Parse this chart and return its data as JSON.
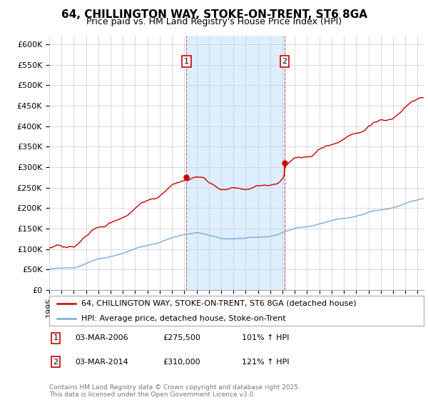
{
  "title": "64, CHILLINGTON WAY, STOKE-ON-TRENT, ST6 8GA",
  "subtitle": "Price paid vs. HM Land Registry's House Price Index (HPI)",
  "ylim": [
    0,
    620000
  ],
  "xlim_start": 1995.0,
  "xlim_end": 2025.5,
  "legend_line1": "64, CHILLINGTON WAY, STOKE-ON-TRENT, ST6 8GA (detached house)",
  "legend_line2": "HPI: Average price, detached house, Stoke-on-Trent",
  "line1_color": "#cc0000",
  "line2_color": "#7aaadd",
  "purchase1_date": 2006.17,
  "purchase1_price": 275500,
  "purchase2_date": 2014.17,
  "purchase2_price": 310000,
  "footnote": "Contains HM Land Registry data © Crown copyright and database right 2025.\nThis data is licensed under the Open Government Licence v3.0.",
  "background_color": "#ffffff",
  "plot_bg_color": "#ffffff",
  "shaded_region_color": "#ddeeff",
  "grid_color": "#cccccc",
  "title_fontsize": 11,
  "subtitle_fontsize": 9,
  "tick_fontsize": 8,
  "legend_fontsize": 8,
  "ann_fontsize": 8,
  "footnote_fontsize": 6.5,
  "yticks": [
    0,
    50000,
    100000,
    150000,
    200000,
    250000,
    300000,
    350000,
    400000,
    450000,
    500000,
    550000,
    600000
  ],
  "yticklabels": [
    "£0",
    "£50K",
    "£100K",
    "£150K",
    "£200K",
    "£250K",
    "£300K",
    "£350K",
    "£400K",
    "£450K",
    "£500K",
    "£550K",
    "£600K"
  ]
}
